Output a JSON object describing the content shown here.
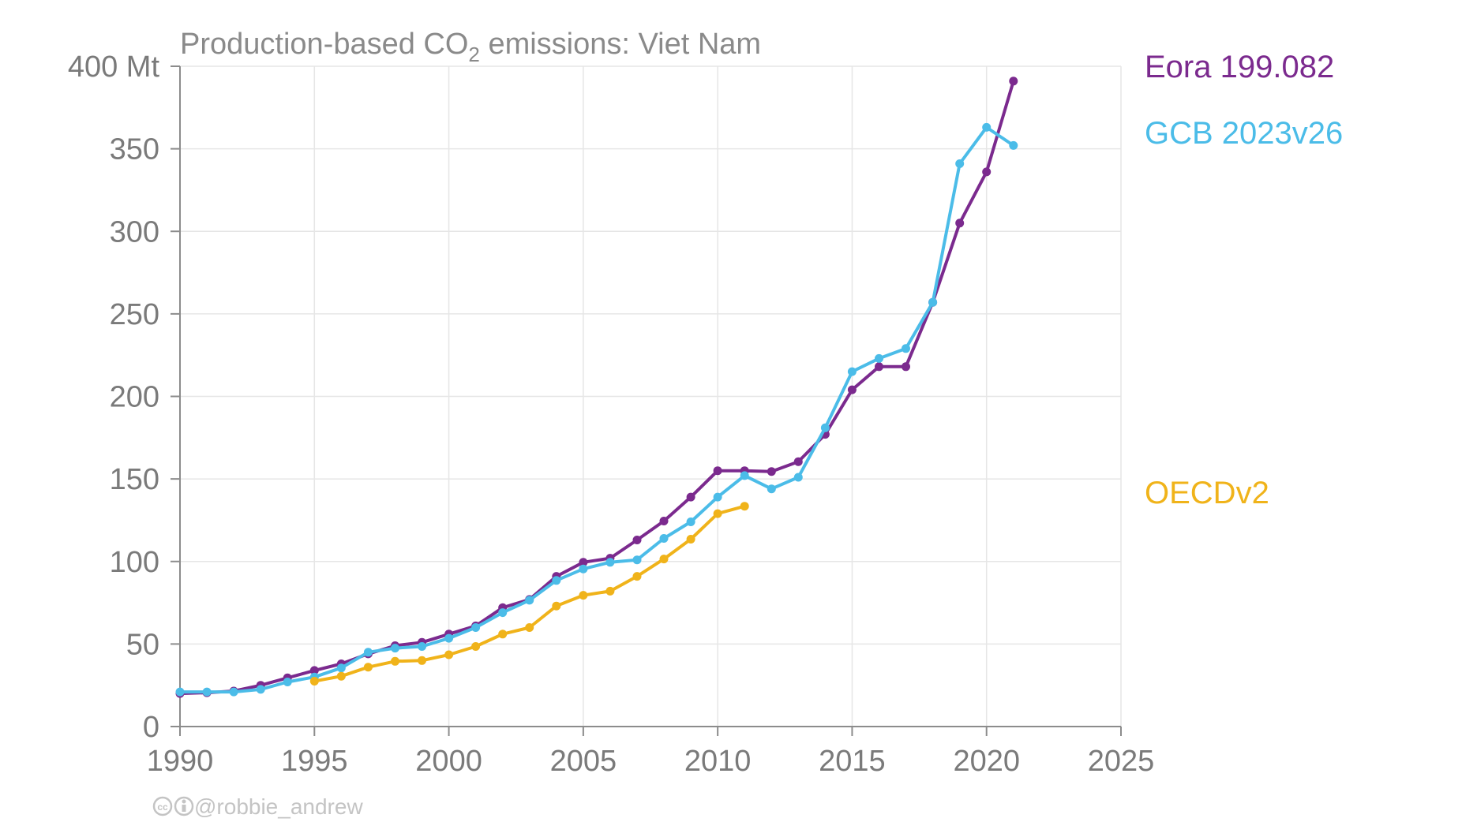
{
  "chart_data": {
    "type": "line",
    "title_main": "Production-based CO",
    "title_sub": "2",
    "title_rest": " emissions: Viet Nam",
    "xlabel": "",
    "ylabel": "",
    "xlim": [
      1990,
      2025
    ],
    "ylim": [
      0,
      400
    ],
    "x_ticks": [
      1990,
      1995,
      2000,
      2005,
      2010,
      2015,
      2020,
      2025
    ],
    "y_ticks": [
      0,
      50,
      100,
      150,
      200,
      250,
      300,
      350,
      400
    ],
    "y_tick_labels": [
      "0",
      "50",
      "100",
      "150",
      "200",
      "250",
      "300",
      "350",
      "400 Mt"
    ],
    "grid": true,
    "legend_placement": "right",
    "series": [
      {
        "name": "Eora 199.082",
        "color": "#7b2a8e",
        "x": [
          1990,
          1991,
          1992,
          1993,
          1994,
          1995,
          1996,
          1997,
          1998,
          1999,
          2000,
          2001,
          2002,
          2003,
          2004,
          2005,
          2006,
          2007,
          2008,
          2009,
          2010,
          2011,
          2012,
          2013,
          2014,
          2015,
          2016,
          2017,
          2018,
          2019,
          2020,
          2021
        ],
        "y": [
          20,
          20.5,
          21.5,
          25,
          29.5,
          34,
          38,
          44,
          49,
          51,
          56,
          61,
          72,
          77,
          91,
          99.5,
          102,
          113,
          124.5,
          139,
          155,
          155,
          154.5,
          160.5,
          177,
          204,
          218,
          218,
          257,
          305,
          336,
          391
        ]
      },
      {
        "name": "GCB 2023v26",
        "color": "#4bbce8",
        "x": [
          1990,
          1991,
          1992,
          1993,
          1994,
          1995,
          1996,
          1997,
          1998,
          1999,
          2000,
          2001,
          2002,
          2003,
          2004,
          2005,
          2006,
          2007,
          2008,
          2009,
          2010,
          2011,
          2012,
          2013,
          2014,
          2015,
          2016,
          2017,
          2018,
          2019,
          2020,
          2021
        ],
        "y": [
          21,
          21,
          21,
          22.5,
          27,
          30,
          35.5,
          45,
          47.5,
          48.5,
          53.5,
          60,
          69,
          76.5,
          88.5,
          95.5,
          99.5,
          101,
          114,
          124,
          139,
          152,
          144,
          151,
          181,
          215,
          223,
          229,
          257,
          341,
          363,
          352
        ]
      },
      {
        "name": "OECDv2",
        "color": "#f0b31a",
        "x": [
          1995,
          1996,
          1997,
          1998,
          1999,
          2000,
          2001,
          2002,
          2003,
          2004,
          2005,
          2006,
          2007,
          2008,
          2009,
          2010,
          2011
        ],
        "y": [
          27.5,
          30.5,
          36,
          39.5,
          40,
          43.5,
          48.5,
          56,
          60,
          73,
          79.5,
          82,
          91,
          101.5,
          113.5,
          129,
          133.5
        ]
      }
    ],
    "credit": "@robbie_andrew",
    "credit_icons": [
      "creative-commons-icon",
      "attribution-icon"
    ]
  }
}
